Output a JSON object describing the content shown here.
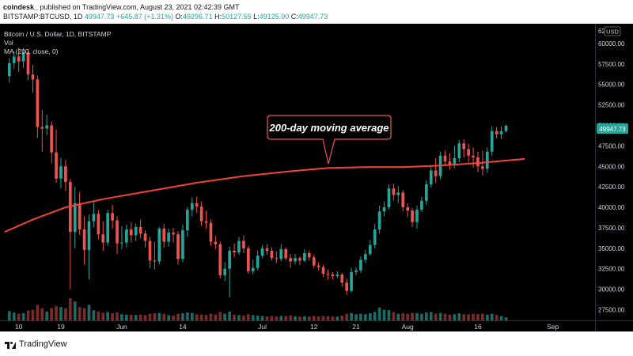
{
  "header": {
    "author": "coindesk_",
    "published_text": "published on TradingView.com, August 23, 2021 02:42:39 GMT",
    "symbol": "BITSTAMP:BTCUSD, 1D",
    "last": "49947.73",
    "change": "+645.87 (+1.31%)",
    "open_label": "O:",
    "open": "49296.71",
    "high_label": "H:",
    "high": "50127.55",
    "low_label": "L:",
    "low": "49125.00",
    "close_label": "C:",
    "close": "49947.73"
  },
  "legend": {
    "title": "Bitcoin / U.S. Dollar, 1D, BITSTAMP",
    "vol": "Vol",
    "ma": "MA (200, close, 0)"
  },
  "annotation": {
    "text": "200-day moving average"
  },
  "price_tag": "49947.73",
  "currency_badge": "USD",
  "footer": {
    "logo_text": "TradingView"
  },
  "colors": {
    "background": "#000000",
    "up": "#26a69a",
    "down": "#ef5350",
    "ma": "#f44336",
    "annotation_border": "#ef5350",
    "volume_up": "#1e6b63",
    "volume_down": "#7a2c2a"
  },
  "chart_data": {
    "type": "candlestick",
    "title": "Bitcoin / U.S. Dollar, 1D, BITSTAMP",
    "y_ticks": [
      27500,
      30000,
      32500,
      35000,
      37500,
      40000,
      42500,
      45000,
      47500,
      50000,
      52500,
      55000,
      57500,
      60000
    ],
    "y_top_partial_label": "62",
    "ylim": [
      26200,
      62400
    ],
    "x_ticks": [
      {
        "label": "10",
        "i": 2
      },
      {
        "label": "19",
        "i": 11
      },
      {
        "label": "Jun",
        "i": 24
      },
      {
        "label": "14",
        "i": 37
      },
      {
        "label": "Jul",
        "i": 54
      },
      {
        "label": "12",
        "i": 65
      },
      {
        "label": "21",
        "i": 74
      },
      {
        "label": "Aug",
        "i": 85
      },
      {
        "label": "16",
        "i": 100
      },
      {
        "label": "Sep",
        "i": 116
      }
    ],
    "x_range": [
      -2,
      125
    ],
    "candles": [
      {
        "o": 56000,
        "c": 57600,
        "h": 58200,
        "l": 55200,
        "v": 0.42
      },
      {
        "o": 57600,
        "c": 58400,
        "h": 59000,
        "l": 56900,
        "v": 0.35
      },
      {
        "o": 58400,
        "c": 57800,
        "h": 59500,
        "l": 56500,
        "v": 0.3
      },
      {
        "o": 57800,
        "c": 58900,
        "h": 59400,
        "l": 57000,
        "v": 0.33
      },
      {
        "o": 58900,
        "c": 56200,
        "h": 59300,
        "l": 55500,
        "v": 0.45
      },
      {
        "o": 56200,
        "c": 55600,
        "h": 57400,
        "l": 54000,
        "v": 0.48
      },
      {
        "o": 55600,
        "c": 49800,
        "h": 56100,
        "l": 48500,
        "v": 0.7
      },
      {
        "o": 49800,
        "c": 49600,
        "h": 51900,
        "l": 46800,
        "v": 0.55
      },
      {
        "o": 49600,
        "c": 50000,
        "h": 51300,
        "l": 48800,
        "v": 0.4
      },
      {
        "o": 50000,
        "c": 46700,
        "h": 50500,
        "l": 45400,
        "v": 0.55
      },
      {
        "o": 46700,
        "c": 43500,
        "h": 49500,
        "l": 43000,
        "v": 0.65
      },
      {
        "o": 43500,
        "c": 45000,
        "h": 46000,
        "l": 42300,
        "v": 0.6
      },
      {
        "o": 45000,
        "c": 43100,
        "h": 45800,
        "l": 42000,
        "v": 0.55
      },
      {
        "o": 43100,
        "c": 37000,
        "h": 43500,
        "l": 30000,
        "v": 1.0
      },
      {
        "o": 37000,
        "c": 40500,
        "h": 42500,
        "l": 35000,
        "v": 0.85
      },
      {
        "o": 40500,
        "c": 37300,
        "h": 41900,
        "l": 36600,
        "v": 0.6
      },
      {
        "o": 37300,
        "c": 34800,
        "h": 38900,
        "l": 33000,
        "v": 0.55
      },
      {
        "o": 34800,
        "c": 38300,
        "h": 39100,
        "l": 31200,
        "v": 0.7
      },
      {
        "o": 38300,
        "c": 39200,
        "h": 40800,
        "l": 37600,
        "v": 0.45
      },
      {
        "o": 39200,
        "c": 36700,
        "h": 39700,
        "l": 36100,
        "v": 0.4
      },
      {
        "o": 36700,
        "c": 35700,
        "h": 38300,
        "l": 34700,
        "v": 0.35
      },
      {
        "o": 35700,
        "c": 39300,
        "h": 39700,
        "l": 35300,
        "v": 0.38
      },
      {
        "o": 39300,
        "c": 38400,
        "h": 40300,
        "l": 37400,
        "v": 0.32
      },
      {
        "o": 38400,
        "c": 35600,
        "h": 38900,
        "l": 34300,
        "v": 0.36
      },
      {
        "o": 35600,
        "c": 35700,
        "h": 37700,
        "l": 34900,
        "v": 0.28
      },
      {
        "o": 35700,
        "c": 37300,
        "h": 37900,
        "l": 35100,
        "v": 0.26
      },
      {
        "o": 37300,
        "c": 36600,
        "h": 38200,
        "l": 35700,
        "v": 0.25
      },
      {
        "o": 36600,
        "c": 37600,
        "h": 38000,
        "l": 35900,
        "v": 0.24
      },
      {
        "o": 37600,
        "c": 36800,
        "h": 38500,
        "l": 36200,
        "v": 0.26
      },
      {
        "o": 36800,
        "c": 35900,
        "h": 37200,
        "l": 35100,
        "v": 0.24
      },
      {
        "o": 35900,
        "c": 33500,
        "h": 36400,
        "l": 32600,
        "v": 0.3
      },
      {
        "o": 33500,
        "c": 33400,
        "h": 35800,
        "l": 32400,
        "v": 0.32
      },
      {
        "o": 33400,
        "c": 37400,
        "h": 37600,
        "l": 33000,
        "v": 0.34
      },
      {
        "o": 37400,
        "c": 35800,
        "h": 38000,
        "l": 35100,
        "v": 0.3
      },
      {
        "o": 35800,
        "c": 36900,
        "h": 37400,
        "l": 35200,
        "v": 0.24
      },
      {
        "o": 36900,
        "c": 36700,
        "h": 37500,
        "l": 35700,
        "v": 0.22
      },
      {
        "o": 36700,
        "c": 33700,
        "h": 37100,
        "l": 33000,
        "v": 0.3
      },
      {
        "o": 33700,
        "c": 37200,
        "h": 37900,
        "l": 33300,
        "v": 0.32
      },
      {
        "o": 37200,
        "c": 39700,
        "h": 40000,
        "l": 36400,
        "v": 0.36
      },
      {
        "o": 39700,
        "c": 40500,
        "h": 41200,
        "l": 38900,
        "v": 0.34
      },
      {
        "o": 40500,
        "c": 40100,
        "h": 41300,
        "l": 39300,
        "v": 0.28
      },
      {
        "o": 40100,
        "c": 38300,
        "h": 40700,
        "l": 37700,
        "v": 0.26
      },
      {
        "o": 38300,
        "c": 38100,
        "h": 39600,
        "l": 37400,
        "v": 0.24
      },
      {
        "o": 38100,
        "c": 35800,
        "h": 38500,
        "l": 35300,
        "v": 0.3
      },
      {
        "o": 35800,
        "c": 35500,
        "h": 36500,
        "l": 34900,
        "v": 0.26
      },
      {
        "o": 35500,
        "c": 31700,
        "h": 35800,
        "l": 31300,
        "v": 0.38
      },
      {
        "o": 31700,
        "c": 32500,
        "h": 33300,
        "l": 31000,
        "v": 0.3
      },
      {
        "o": 32500,
        "c": 34700,
        "h": 35200,
        "l": 29000,
        "v": 0.4
      },
      {
        "o": 34700,
        "c": 34500,
        "h": 35600,
        "l": 33900,
        "v": 0.26
      },
      {
        "o": 34500,
        "c": 35900,
        "h": 36400,
        "l": 34200,
        "v": 0.24
      },
      {
        "o": 35900,
        "c": 35000,
        "h": 36600,
        "l": 34400,
        "v": 0.22
      },
      {
        "o": 35000,
        "c": 32200,
        "h": 35300,
        "l": 31900,
        "v": 0.28
      },
      {
        "o": 32200,
        "c": 32600,
        "h": 33600,
        "l": 31800,
        "v": 0.24
      },
      {
        "o": 32600,
        "c": 34100,
        "h": 34700,
        "l": 32300,
        "v": 0.22
      },
      {
        "o": 34100,
        "c": 35000,
        "h": 35400,
        "l": 33800,
        "v": 0.2
      },
      {
        "o": 35000,
        "c": 34700,
        "h": 35500,
        "l": 34200,
        "v": 0.18
      },
      {
        "o": 34700,
        "c": 33800,
        "h": 35100,
        "l": 33500,
        "v": 0.2
      },
      {
        "o": 33800,
        "c": 33700,
        "h": 34600,
        "l": 33200,
        "v": 0.18
      },
      {
        "o": 33700,
        "c": 34900,
        "h": 35500,
        "l": 33400,
        "v": 0.2
      },
      {
        "o": 34900,
        "c": 33800,
        "h": 35100,
        "l": 33500,
        "v": 0.2
      },
      {
        "o": 33800,
        "c": 33400,
        "h": 34300,
        "l": 32600,
        "v": 0.22
      },
      {
        "o": 33400,
        "c": 33800,
        "h": 34300,
        "l": 33000,
        "v": 0.18
      },
      {
        "o": 33800,
        "c": 33500,
        "h": 34000,
        "l": 33000,
        "v": 0.17
      },
      {
        "o": 33500,
        "c": 34400,
        "h": 34900,
        "l": 33300,
        "v": 0.19
      },
      {
        "o": 34400,
        "c": 33900,
        "h": 34700,
        "l": 33500,
        "v": 0.18
      },
      {
        "o": 33900,
        "c": 32900,
        "h": 34200,
        "l": 32600,
        "v": 0.2
      },
      {
        "o": 32900,
        "c": 32700,
        "h": 33300,
        "l": 32300,
        "v": 0.18
      },
      {
        "o": 32700,
        "c": 31900,
        "h": 33000,
        "l": 31500,
        "v": 0.2
      },
      {
        "o": 31900,
        "c": 31800,
        "h": 32400,
        "l": 31200,
        "v": 0.19
      },
      {
        "o": 31800,
        "c": 31600,
        "h": 32100,
        "l": 31200,
        "v": 0.18
      },
      {
        "o": 31600,
        "c": 31800,
        "h": 32200,
        "l": 31400,
        "v": 0.17
      },
      {
        "o": 31800,
        "c": 30800,
        "h": 32000,
        "l": 30300,
        "v": 0.22
      },
      {
        "o": 30800,
        "c": 29800,
        "h": 31300,
        "l": 29300,
        "v": 0.3
      },
      {
        "o": 29800,
        "c": 32100,
        "h": 32600,
        "l": 29600,
        "v": 0.33
      },
      {
        "o": 32100,
        "c": 32300,
        "h": 32700,
        "l": 31700,
        "v": 0.28
      },
      {
        "o": 32300,
        "c": 33600,
        "h": 34000,
        "l": 32000,
        "v": 0.3
      },
      {
        "o": 33600,
        "c": 34300,
        "h": 34800,
        "l": 33200,
        "v": 0.28
      },
      {
        "o": 34300,
        "c": 35400,
        "h": 36000,
        "l": 34100,
        "v": 0.32
      },
      {
        "o": 35400,
        "c": 37300,
        "h": 38000,
        "l": 35000,
        "v": 0.38
      },
      {
        "o": 37300,
        "c": 39500,
        "h": 40200,
        "l": 36800,
        "v": 0.58
      },
      {
        "o": 39500,
        "c": 40000,
        "h": 40700,
        "l": 38900,
        "v": 0.48
      },
      {
        "o": 40000,
        "c": 42300,
        "h": 42800,
        "l": 39700,
        "v": 0.46
      },
      {
        "o": 42300,
        "c": 41500,
        "h": 42900,
        "l": 40800,
        "v": 0.38
      },
      {
        "o": 41500,
        "c": 41800,
        "h": 42600,
        "l": 40500,
        "v": 0.3
      },
      {
        "o": 41800,
        "c": 40000,
        "h": 42100,
        "l": 39500,
        "v": 0.32
      },
      {
        "o": 40000,
        "c": 39600,
        "h": 40500,
        "l": 38800,
        "v": 0.3
      },
      {
        "o": 39600,
        "c": 38200,
        "h": 39900,
        "l": 37600,
        "v": 0.34
      },
      {
        "o": 38200,
        "c": 39700,
        "h": 40200,
        "l": 37400,
        "v": 0.33
      },
      {
        "o": 39700,
        "c": 40800,
        "h": 41300,
        "l": 39400,
        "v": 0.3
      },
      {
        "o": 40800,
        "c": 42800,
        "h": 43300,
        "l": 40300,
        "v": 0.36
      },
      {
        "o": 42800,
        "c": 44500,
        "h": 45000,
        "l": 42400,
        "v": 0.38
      },
      {
        "o": 44500,
        "c": 43800,
        "h": 46000,
        "l": 43000,
        "v": 0.3
      },
      {
        "o": 43800,
        "c": 46300,
        "h": 46800,
        "l": 43400,
        "v": 0.34
      },
      {
        "o": 46300,
        "c": 45600,
        "h": 46900,
        "l": 45100,
        "v": 0.3
      },
      {
        "o": 45600,
        "c": 45200,
        "h": 46600,
        "l": 44600,
        "v": 0.26
      },
      {
        "o": 45200,
        "c": 46000,
        "h": 47500,
        "l": 44800,
        "v": 0.28
      },
      {
        "o": 46000,
        "c": 47800,
        "h": 48200,
        "l": 45500,
        "v": 0.32
      },
      {
        "o": 47800,
        "c": 47100,
        "h": 48300,
        "l": 46100,
        "v": 0.28
      },
      {
        "o": 47100,
        "c": 46300,
        "h": 47800,
        "l": 45500,
        "v": 0.27
      },
      {
        "o": 46300,
        "c": 46100,
        "h": 47300,
        "l": 44800,
        "v": 0.3
      },
      {
        "o": 46100,
        "c": 45000,
        "h": 46800,
        "l": 44300,
        "v": 0.28
      },
      {
        "o": 45000,
        "c": 44700,
        "h": 46900,
        "l": 43900,
        "v": 0.3
      },
      {
        "o": 44700,
        "c": 46800,
        "h": 47300,
        "l": 44200,
        "v": 0.26
      },
      {
        "o": 46800,
        "c": 49300,
        "h": 49900,
        "l": 46300,
        "v": 0.3
      },
      {
        "o": 49300,
        "c": 48900,
        "h": 49800,
        "l": 48400,
        "v": 0.24
      },
      {
        "o": 48900,
        "c": 49300,
        "h": 49900,
        "l": 48300,
        "v": 0.2
      },
      {
        "o": 49300,
        "c": 49947.73,
        "h": 50127.55,
        "l": 49125,
        "v": 0.14
      }
    ],
    "moving_average": {
      "name": "MA (200, close, 0)",
      "points": [
        {
          "i": -1,
          "v": 37000
        },
        {
          "i": 5,
          "v": 38500
        },
        {
          "i": 12,
          "v": 40000
        },
        {
          "i": 20,
          "v": 41000
        },
        {
          "i": 30,
          "v": 42000
        },
        {
          "i": 40,
          "v": 43000
        },
        {
          "i": 50,
          "v": 43800
        },
        {
          "i": 60,
          "v": 44400
        },
        {
          "i": 68,
          "v": 44800
        },
        {
          "i": 76,
          "v": 44900
        },
        {
          "i": 84,
          "v": 44900
        },
        {
          "i": 92,
          "v": 45100
        },
        {
          "i": 100,
          "v": 45400
        },
        {
          "i": 110,
          "v": 45900
        }
      ]
    }
  }
}
